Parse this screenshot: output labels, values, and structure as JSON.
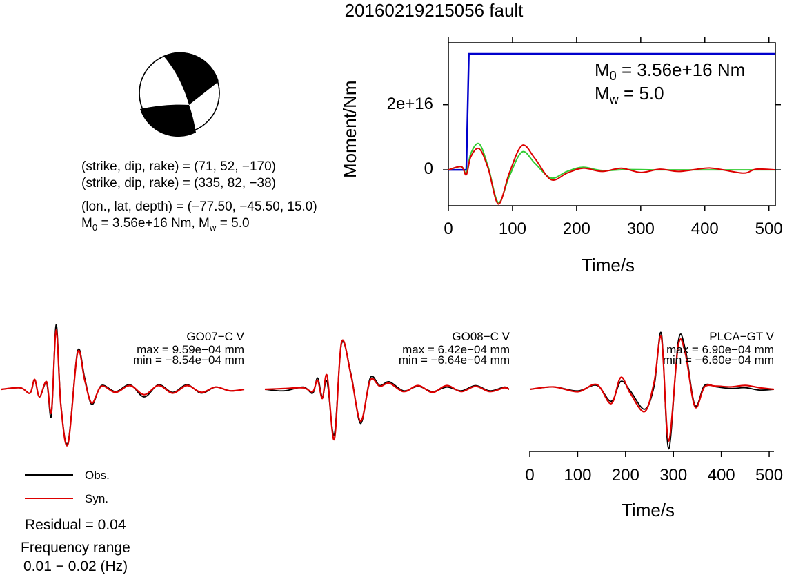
{
  "title": "20160219215056 fault",
  "mechanism": {
    "line1": "(strike, dip, rake) = (71, 52, −170)",
    "line2": "(strike, dip, rake) = (335, 82, −38)",
    "line3": "(lon., lat, depth) = (−77.50, −45.50, 15.0)",
    "line4_m0": "M",
    "line4_m0_sub": "0",
    "line4_mid": " = 3.56e+16 Nm, M",
    "line4_mw_sub": "w",
    "line4_end": " = 5.0"
  },
  "moment_plot": {
    "ylabel": "Moment/Nm",
    "xlabel": "Time/s",
    "m0_label": "M",
    "m0_sub": "0",
    "m0_value": " = 3.56e+16 Nm",
    "mw_label": "M",
    "mw_sub": "w",
    "mw_value": " = 5.0",
    "x_ticks": [
      "0",
      "100",
      "200",
      "300",
      "400",
      "500"
    ],
    "y_ticks": [
      "0",
      "2e+16"
    ]
  },
  "stations": [
    {
      "name": "GO07−C V",
      "max": "max = 9.59e−04 mm",
      "min": "min = −8.54e−04 mm"
    },
    {
      "name": "GO08−C V",
      "max": "max = 6.42e−04 mm",
      "min": "min = −6.64e−04 mm"
    },
    {
      "name": "PLCA−GT V",
      "max": "max = 6.90e−04 mm",
      "min": "min = −6.60e−04 mm"
    }
  ],
  "waveform_axis": {
    "xlabel": "Time/s",
    "x_ticks": [
      "0",
      "100",
      "200",
      "300",
      "400",
      "500"
    ]
  },
  "legend": {
    "obs": "Obs.",
    "syn": "Syn.",
    "residual": "Residual = 0.04",
    "freq_title": "Frequency range",
    "freq_value": "0.01 − 0.02 (Hz)"
  },
  "colors": {
    "observed": "#000000",
    "synthetic": "#dd0000",
    "cumulative_moment": "#0000cc",
    "moment_rate_green": "#33cc33",
    "moment_rate_red": "#dd0000"
  },
  "chart_data": [
    {
      "type": "line",
      "title": "",
      "xlabel": "Time/s",
      "ylabel": "Moment/Nm",
      "xlim": [
        0,
        510
      ],
      "ylim": [
        -1.1e+16,
        3.9e+16
      ],
      "series": [
        {
          "name": "cumulative moment",
          "color": "#0000cc",
          "x": [
            0,
            28,
            32,
            510
          ],
          "y": [
            0,
            0,
            3.56e+16,
            3.56e+16
          ]
        },
        {
          "name": "moment rate (green)",
          "color": "#33cc33",
          "x": [
            0,
            20,
            28,
            35,
            48,
            62,
            78,
            95,
            115,
            135,
            160,
            185,
            210,
            240,
            280,
            330,
            400,
            510
          ],
          "y": [
            0,
            1000000000000000.0,
            -1000000000000000.0,
            5000000000000000.0,
            8000000000000000.0,
            1000000000000000.0,
            -1e+16,
            -2000000000000000.0,
            5500000000000000.0,
            2000000000000000.0,
            -2500000000000000.0,
            -500000000000000.0,
            800000000000000.0,
            -200000000000000.0,
            100000000000000.0,
            0,
            0,
            0
          ]
        },
        {
          "name": "moment rate (red)",
          "color": "#dd0000",
          "x": [
            0,
            20,
            28,
            35,
            48,
            62,
            78,
            95,
            115,
            135,
            160,
            185,
            210,
            240,
            270,
            300,
            330,
            360,
            400,
            420,
            460,
            480,
            510
          ],
          "y": [
            0,
            1000000000000000.0,
            -1500000000000000.0,
            4000000000000000.0,
            6500000000000000.0,
            500000000000000.0,
            -1.05e+16,
            -1000000000000000.0,
            7500000000000000.0,
            3500000000000000.0,
            -3000000000000000.0,
            -1000000000000000.0,
            500000000000000.0,
            -500000000000000.0,
            500000000000000.0,
            -800000000000000.0,
            200000000000000.0,
            -500000000000000.0,
            500000000000000.0,
            300000000000000.0,
            -1000000000000000.0,
            200000000000000.0,
            0
          ]
        }
      ]
    },
    {
      "type": "line",
      "title": "GO07−C V",
      "xlabel": "Time/s",
      "xlim": [
        0,
        510
      ],
      "ylim": [
        -1,
        1
      ],
      "series": [
        {
          "name": "Obs.",
          "color": "#000000",
          "x": [
            0,
            40,
            60,
            70,
            80,
            95,
            105,
            115,
            125,
            140,
            160,
            175,
            190,
            210,
            240,
            270,
            300,
            330,
            360,
            390,
            420,
            450,
            480,
            510
          ],
          "y": [
            0,
            0.02,
            -0.05,
            0.12,
            -0.1,
            0.08,
            -0.35,
            0.85,
            -0.2,
            -0.7,
            0.5,
            0.15,
            -0.2,
            0.05,
            -0.03,
            0.06,
            -0.1,
            0.06,
            -0.04,
            0.06,
            -0.05,
            0.03,
            -0.02,
            0
          ]
        },
        {
          "name": "Syn.",
          "color": "#dd0000",
          "x": [
            0,
            40,
            60,
            70,
            80,
            95,
            105,
            115,
            125,
            140,
            160,
            175,
            190,
            210,
            240,
            270,
            300,
            330,
            360,
            390,
            420,
            450,
            480,
            510
          ],
          "y": [
            0,
            0.02,
            -0.05,
            0.13,
            -0.1,
            0.1,
            -0.3,
            0.78,
            -0.22,
            -0.72,
            0.48,
            0.12,
            -0.18,
            0.04,
            -0.04,
            0.05,
            -0.07,
            0.05,
            -0.05,
            0.05,
            -0.04,
            0.03,
            -0.02,
            0
          ]
        }
      ]
    },
    {
      "type": "line",
      "title": "GO08−C V",
      "xlabel": "Time/s",
      "xlim": [
        0,
        510
      ],
      "ylim": [
        -1,
        1
      ],
      "series": [
        {
          "name": "Obs.",
          "color": "#000000",
          "x": [
            0,
            40,
            80,
            100,
            110,
            120,
            130,
            145,
            160,
            180,
            200,
            220,
            240,
            260,
            290,
            320,
            350,
            380,
            410,
            440,
            470,
            500,
            510
          ],
          "y": [
            0,
            -0.02,
            0.03,
            -0.05,
            0.15,
            -0.1,
            0.1,
            -0.6,
            0.6,
            0.2,
            -0.45,
            0.15,
            0.05,
            0.1,
            -0.02,
            0.04,
            -0.03,
            0.03,
            -0.02,
            0.05,
            -0.02,
            0.03,
            0
          ]
        },
        {
          "name": "Syn.",
          "color": "#dd0000",
          "x": [
            0,
            40,
            80,
            100,
            110,
            120,
            130,
            145,
            160,
            180,
            200,
            220,
            240,
            260,
            290,
            320,
            350,
            380,
            410,
            440,
            470,
            500,
            510
          ],
          "y": [
            0,
            0.01,
            0.02,
            -0.03,
            0.12,
            -0.12,
            0.18,
            -0.66,
            0.62,
            0.18,
            -0.42,
            0.12,
            0.04,
            0.08,
            -0.03,
            0.05,
            -0.04,
            0.05,
            -0.03,
            0.04,
            -0.03,
            0.02,
            0
          ]
        }
      ]
    },
    {
      "type": "line",
      "title": "PLCA−GT V",
      "xlabel": "Time/s",
      "xlim": [
        0,
        510
      ],
      "ylim": [
        -1,
        1
      ],
      "series": [
        {
          "name": "Obs.",
          "color": "#000000",
          "x": [
            0,
            50,
            100,
            140,
            170,
            190,
            210,
            240,
            260,
            275,
            290,
            310,
            325,
            345,
            365,
            390,
            420,
            450,
            480,
            510
          ],
          "y": [
            0,
            0.03,
            -0.02,
            0.05,
            -0.15,
            0.1,
            -0.02,
            -0.25,
            0.05,
            0.7,
            -0.75,
            0.6,
            0.5,
            -0.2,
            0.05,
            0.03,
            0.01,
            0.02,
            -0.01,
            0
          ]
        },
        {
          "name": "Syn.",
          "color": "#dd0000",
          "x": [
            0,
            50,
            100,
            140,
            170,
            190,
            210,
            240,
            260,
            275,
            290,
            310,
            325,
            345,
            365,
            390,
            420,
            450,
            480,
            510
          ],
          "y": [
            0,
            0.03,
            -0.03,
            0.06,
            -0.18,
            0.15,
            -0.05,
            -0.28,
            0.1,
            0.65,
            -0.65,
            0.55,
            0.45,
            -0.22,
            0.03,
            0.04,
            0.03,
            0.05,
            0.02,
            0
          ]
        }
      ]
    }
  ]
}
